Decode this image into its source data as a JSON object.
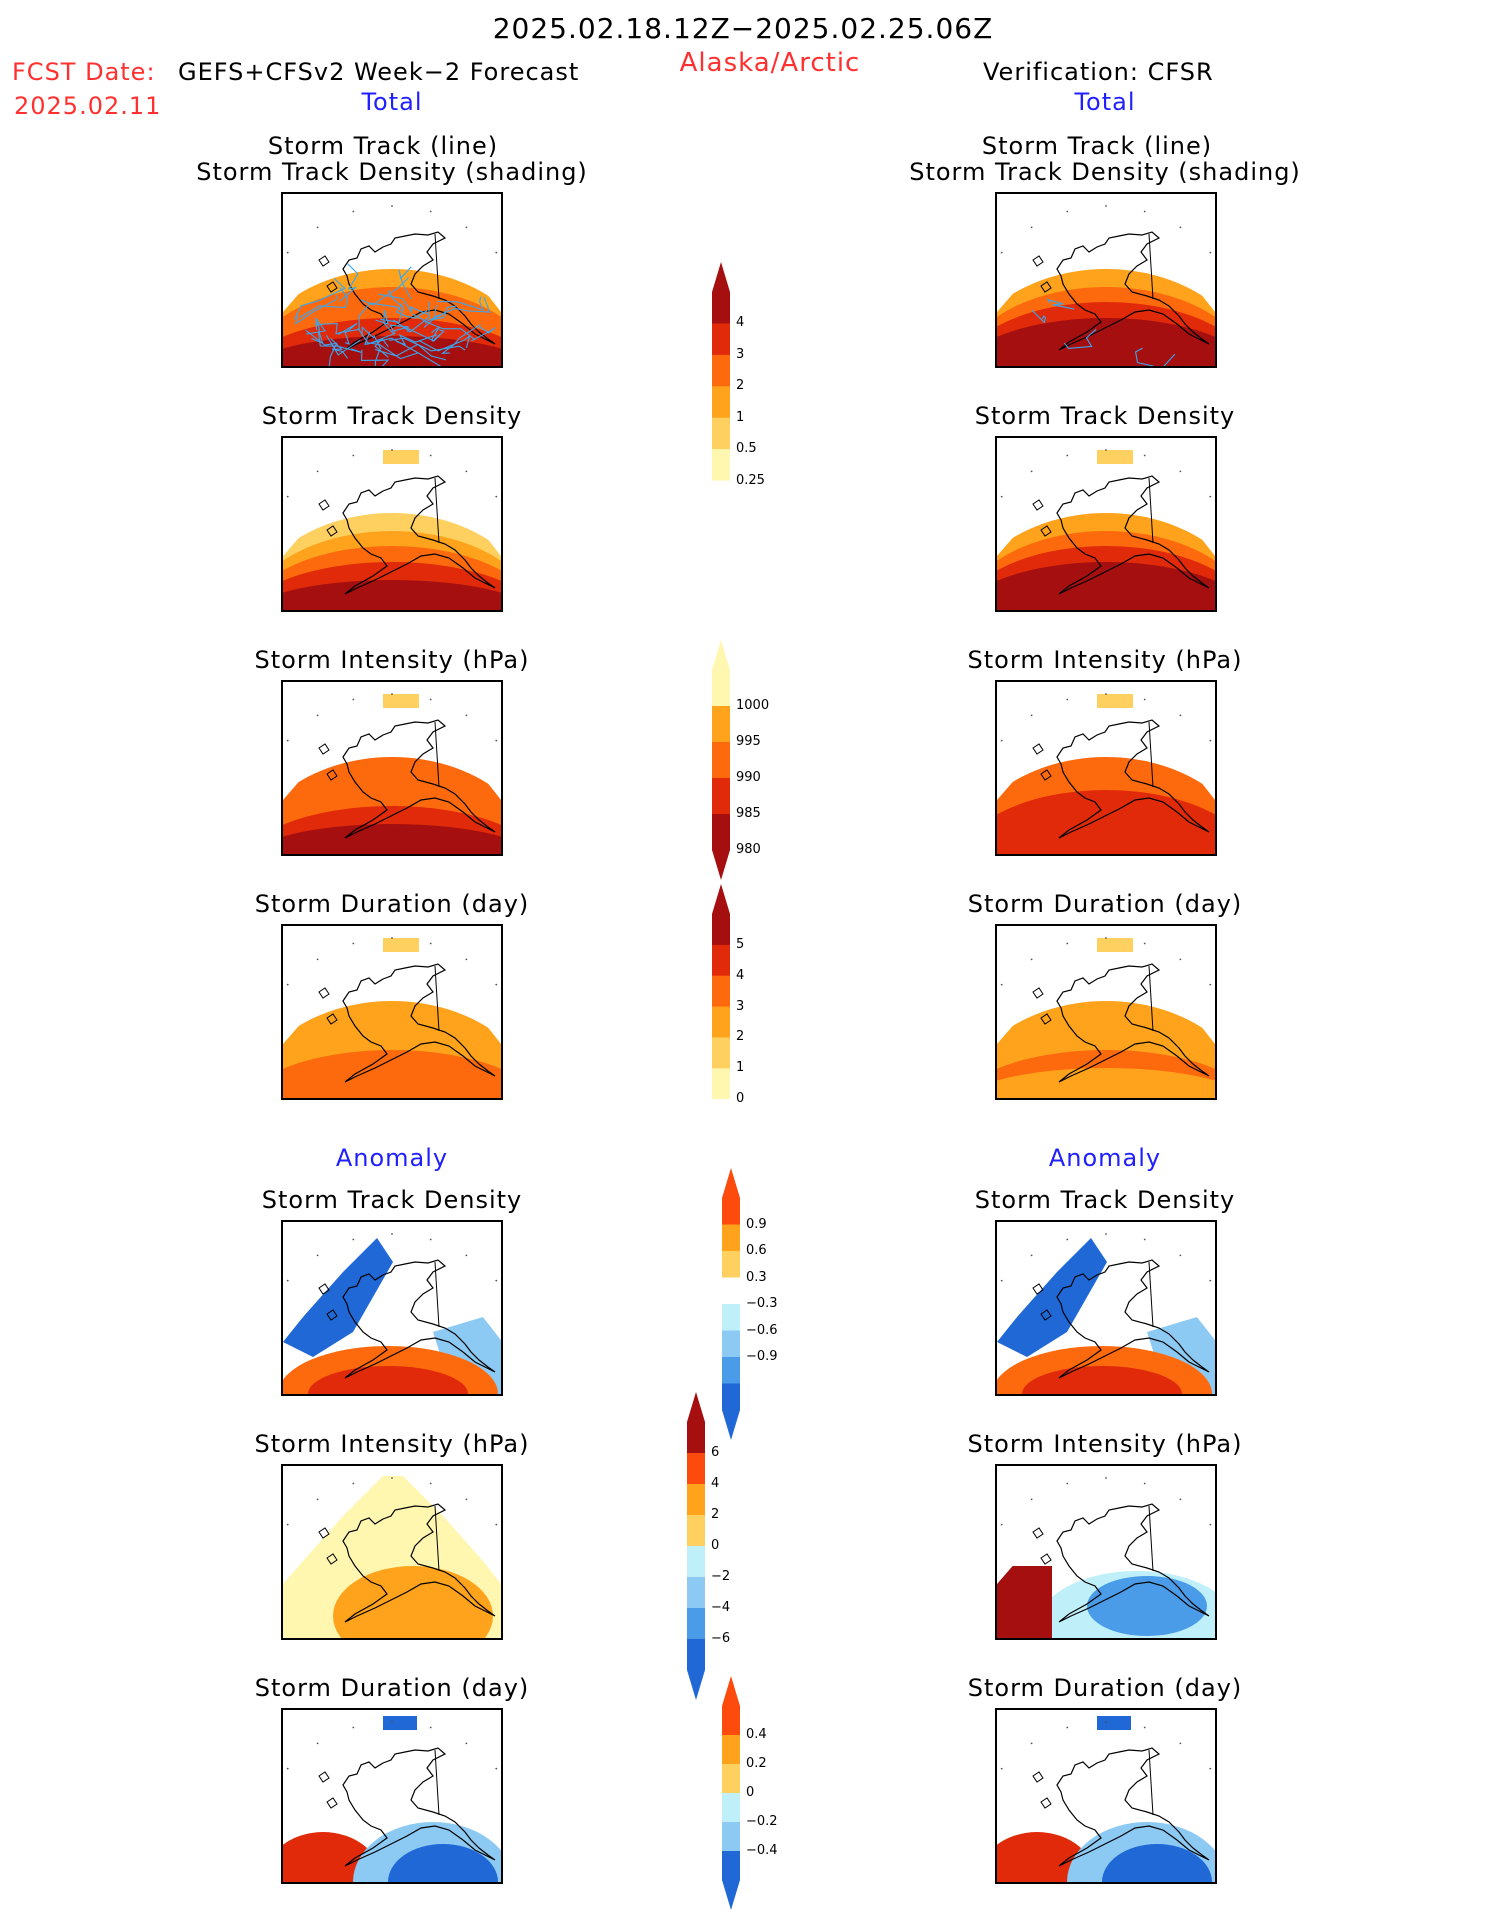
{
  "header": {
    "date_range": "2025.02.18.12Z−2025.02.25.06Z",
    "region": "Alaska/Arctic",
    "fcst_prefix": "FCST Date:",
    "fcst_model": "GEFS+CFSv2 Week−2 Forecast",
    "fcst_date": "2025.02.11",
    "verification": "Verification: CFSR"
  },
  "sections": {
    "total_left": "Total",
    "total_right": "Total",
    "anomaly_left": "Anomaly",
    "anomaly_right": "Anomaly"
  },
  "titles": {
    "track_line": "Storm Track (line)",
    "track_density_shading": "Storm Track Density (shading)",
    "track_density": "Storm Track Density",
    "intensity": "Storm Intensity (hPa)",
    "duration": "Storm Duration (day)"
  },
  "colorbars": {
    "density_total": [
      "4",
      "3",
      "2",
      "1",
      "0.5",
      "0.25"
    ],
    "intensity_total": [
      "1000",
      "995",
      "990",
      "985",
      "980"
    ],
    "duration_total": [
      "5",
      "4",
      "3",
      "2",
      "1",
      "0"
    ],
    "density_anom": [
      "0.9",
      "0.6",
      "0.3",
      "−0.3",
      "−0.6",
      "−0.9"
    ],
    "intensity_anom": [
      "6",
      "4",
      "2",
      "0",
      "−2",
      "−4",
      "−6"
    ],
    "duration_anom": [
      "0.4",
      "0.2",
      "0",
      "−0.2",
      "−0.4"
    ]
  },
  "colors": {
    "header_red": "#ff3030",
    "section_blue": "#2020ff",
    "warm": [
      "#fff7b0",
      "#fed060",
      "#fea31b",
      "#fd6a0d",
      "#e02a0a",
      "#a50f0f"
    ],
    "cool": [
      "#bff0fa",
      "#8ccaf4",
      "#4a9ce8",
      "#1f68d6"
    ],
    "track_line": "#3aa6ef"
  }
}
